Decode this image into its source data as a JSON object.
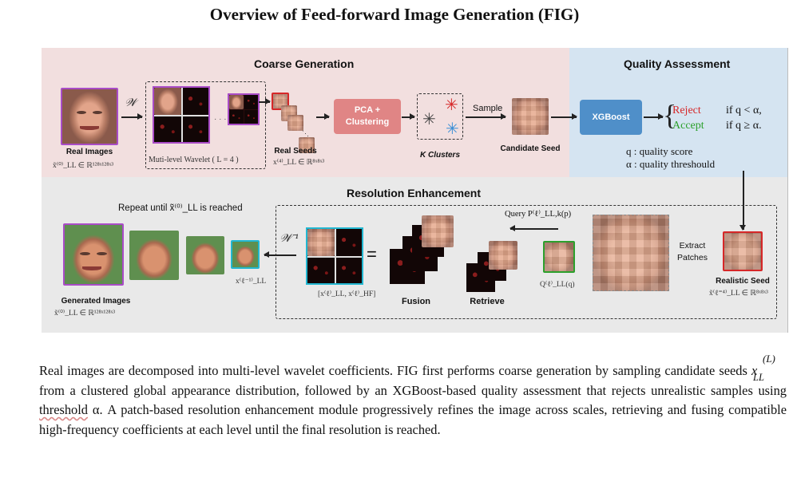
{
  "title": "Overview of Feed-forward Image Generation (FIG)",
  "figure": {
    "coarse": {
      "heading": "Coarse Generation",
      "w_symbol": "𝒲",
      "real_images_label": "Real Images",
      "real_images_math": "x̃⁽⁰⁾_LL ∈ ℝ¹²⁸ˣ¹²⁸ˣ³",
      "wavelet_label": "Muti-level Wavelet ( L = 4 )",
      "real_seeds_label": "Real Seeds",
      "real_seeds_math": "x⁽⁴⁾_LL ∈ ℝ⁸ˣ⁸ˣ³",
      "pca_label": "PCA +\nClustering",
      "clusters_label": "K Clusters",
      "sample_label": "Sample",
      "candidate_label": "Candidate Seed"
    },
    "quality": {
      "heading": "Quality Assessment",
      "xgboost_label": "XGBoost",
      "reject_label": "Reject",
      "reject_cond": "if q < α,",
      "accept_label": "Accept",
      "accept_cond": "if q ≥ α.",
      "q_def": "q : quality score",
      "alpha_def": "α : quality threshould",
      "colors": {
        "xgboost": "#4f8fc9",
        "reject": "#d62728",
        "accept": "#2ca02c"
      }
    },
    "resolution": {
      "heading": "Resolution Enhancement",
      "repeat_label": "Repeat until x̃⁽⁰⁾_LL is reached",
      "generated_label": "Generated Images",
      "generated_math": "x̃⁽⁰⁾_LL ∈ ℝ¹²⁸ˣ¹²⁸ˣ³",
      "x_prev_math": "x⁽ℓ⁻¹⁾_LL",
      "w_inv_symbol": "𝒲⁻¹",
      "equals_symbol": "=",
      "coeff_math": "[x⁽ℓ⁾_LL, x⁽ℓ⁾_HF]",
      "fusion_label": "Fusion",
      "retrieve_label": "Retrieve",
      "query_label": "Query P⁽ℓ⁾_LL,k(p)",
      "q_math": "Q⁽ℓ⁾_LL(q)",
      "extract_label": "Extract\nPatches",
      "realistic_seed_label": "Realistic Seed",
      "realistic_seed_math": "x̃⁽ℓ⁼⁴⁾_LL ∈ ℝ⁸ˣ⁸ˣ³"
    },
    "colors": {
      "coarse_bg": "#f2dfdf",
      "quality_bg": "#d5e4f1",
      "res_bg": "#e9e9e9",
      "accent_purple": "#a94cc7",
      "accent_cyan": "#22b7d1",
      "pca_pill": "#e08585"
    }
  },
  "caption": {
    "part1": "Real images are decomposed into multi-level wavelet coefficients. FIG first performs coarse generation by sampling candidate seeds",
    "seed_symbol": "x",
    "seed_sup": "(L)",
    "seed_sub": "LL",
    "part2": "from a clustered global appearance distribution, followed by an XGBoost-based quality assessment that rejects unrealistic samples using",
    "threshold_word": "threshold",
    "alpha": "α",
    "part3": ". A patch-based resolution enhancement module progressively refines the image across scales, retrieving and fusing compatible high-frequency coefficients at each level until the final resolution is reached."
  }
}
